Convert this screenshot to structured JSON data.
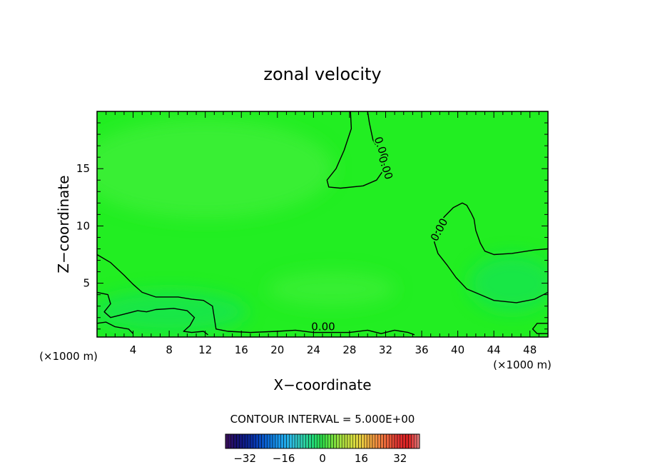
{
  "chart_data": {
    "type": "heatmap",
    "title": "zonal velocity",
    "xlabel": "X−coordinate",
    "ylabel": "Z−coordinate",
    "x_unit_left": "(×1000 m)",
    "x_unit_right": "(×1000 m)",
    "xlim": [
      0,
      50
    ],
    "ylim": [
      0.3,
      20
    ],
    "x_ticks": [
      4,
      8,
      12,
      16,
      20,
      24,
      28,
      32,
      36,
      40,
      44,
      48
    ],
    "y_ticks": [
      5,
      10,
      15
    ],
    "contour_interval_label": "CONTOUR INTERVAL = 5.000E+00",
    "contour_labels": [
      "0.00",
      "0.00",
      "0.00",
      "0.00"
    ],
    "contours": [
      {
        "level": 0,
        "points": [
          [
            28.1,
            20
          ],
          [
            28.2,
            18.5
          ],
          [
            27.4,
            16.6
          ],
          [
            26.5,
            15.0
          ],
          [
            25.5,
            14.0
          ],
          [
            25.7,
            13.4
          ],
          [
            27.0,
            13.3
          ],
          [
            29.5,
            13.5
          ],
          [
            31.0,
            14.0
          ],
          [
            31.7,
            14.8
          ],
          [
            31.9,
            15.7
          ],
          [
            31.4,
            16.4
          ],
          [
            30.6,
            17.5
          ],
          [
            30.2,
            19.0
          ],
          [
            30.0,
            20
          ]
        ]
      },
      {
        "level": 0,
        "points": [
          [
            50,
            8.0
          ],
          [
            48.5,
            7.9
          ],
          [
            46.0,
            7.6
          ],
          [
            44.0,
            7.5
          ],
          [
            43.0,
            7.8
          ],
          [
            42.5,
            8.5
          ],
          [
            42.0,
            9.6
          ],
          [
            41.8,
            10.6
          ],
          [
            41.5,
            11.1
          ],
          [
            41.0,
            11.8
          ],
          [
            40.5,
            12.0
          ],
          [
            39.5,
            11.6
          ],
          [
            38.5,
            10.8
          ],
          [
            37.7,
            9.8
          ],
          [
            37.4,
            8.6
          ],
          [
            37.8,
            7.6
          ],
          [
            38.8,
            6.6
          ],
          [
            39.8,
            5.5
          ],
          [
            41.0,
            4.5
          ],
          [
            42.5,
            4.0
          ],
          [
            44.0,
            3.5
          ],
          [
            46.5,
            3.3
          ],
          [
            48.5,
            3.6
          ],
          [
            50,
            4.2
          ]
        ]
      },
      {
        "level": 0,
        "points": [
          [
            0,
            7.5
          ],
          [
            1.5,
            6.8
          ],
          [
            3.0,
            5.7
          ],
          [
            4.0,
            4.9
          ],
          [
            5.0,
            4.2
          ],
          [
            6.5,
            3.8
          ],
          [
            9.0,
            3.8
          ],
          [
            10.5,
            3.6
          ],
          [
            11.8,
            3.5
          ],
          [
            12.8,
            3.0
          ],
          [
            13.0,
            2.0
          ],
          [
            13.2,
            1.0
          ],
          [
            14.5,
            0.8
          ],
          [
            17.0,
            0.7
          ],
          [
            20.0,
            0.8
          ],
          [
            22.0,
            0.9
          ],
          [
            24.0,
            0.7
          ],
          [
            26.0,
            0.7
          ],
          [
            28.0,
            0.7
          ],
          [
            30.0,
            0.9
          ],
          [
            31.5,
            0.6
          ],
          [
            33.0,
            0.9
          ],
          [
            34.5,
            0.7
          ],
          [
            35.2,
            0.5
          ]
        ]
      },
      {
        "level": 0,
        "points": [
          [
            0,
            4.2
          ],
          [
            1.2,
            4.0
          ],
          [
            1.5,
            3.2
          ],
          [
            0.8,
            2.5
          ],
          [
            1.5,
            2.0
          ],
          [
            3.0,
            2.3
          ],
          [
            4.5,
            2.6
          ],
          [
            5.5,
            2.5
          ],
          [
            6.5,
            2.7
          ],
          [
            8.5,
            2.8
          ],
          [
            10.0,
            2.6
          ],
          [
            10.8,
            2.0
          ],
          [
            10.3,
            1.3
          ],
          [
            9.6,
            0.8
          ],
          [
            10.5,
            0.7
          ],
          [
            11.8,
            0.8
          ],
          [
            12.3,
            0.5
          ]
        ]
      },
      {
        "level": 0,
        "points": [
          [
            0,
            1.5
          ],
          [
            1.0,
            1.6
          ],
          [
            2.0,
            1.2
          ],
          [
            3.5,
            1.0
          ],
          [
            4.0,
            0.6
          ]
        ]
      },
      {
        "level": 0,
        "points": [
          [
            50,
            1.5
          ],
          [
            48.8,
            1.5
          ],
          [
            48.3,
            1.0
          ],
          [
            48.8,
            0.6
          ],
          [
            50,
            0.6
          ]
        ]
      }
    ],
    "colorbar": {
      "ticks": [
        -32,
        -16,
        0,
        16,
        32
      ],
      "range": [
        -40,
        40
      ],
      "colors": [
        "#3a1060",
        "#18106e",
        "#0c2090",
        "#0838b0",
        "#0a60d0",
        "#1488e4",
        "#20a8ec",
        "#30c0d8",
        "#2ed0a8",
        "#22d878",
        "#30e048",
        "#70e040",
        "#a8e040",
        "#d0e040",
        "#e8d040",
        "#f0a840",
        "#f08040",
        "#e85838",
        "#e03030",
        "#d82020",
        "#e87878"
      ],
      "levels": 70
    },
    "colors": {
      "field_base": "#22ee22",
      "field_light": "#44f03a",
      "field_cool": "#18e64a"
    }
  }
}
